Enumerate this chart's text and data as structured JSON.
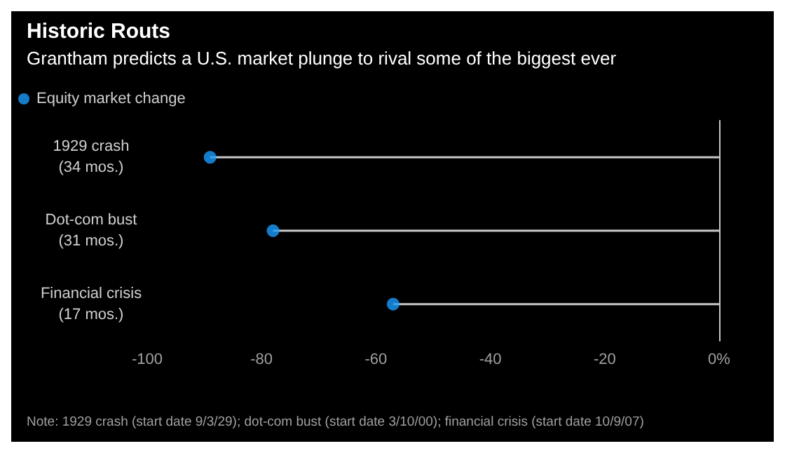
{
  "chart_data": {
    "type": "lollipop",
    "orientation": "horizontal",
    "title": "Historic Routs",
    "subtitle": "Grantham predicts a U.S. market plunge to rival some of the biggest ever",
    "categories": [
      "1929 crash\n(34 mos.)",
      "Dot-com bust\n(31 mos.)",
      "Financial crisis\n(17 mos.)"
    ],
    "series": [
      {
        "name": "Equity market change",
        "color": "#1a9bfc",
        "values": [
          -89,
          -78,
          -57
        ]
      }
    ],
    "xlim": [
      -100,
      0
    ],
    "xticks": [
      -100,
      -80,
      -60,
      -40,
      -20,
      {
        "value": 0,
        "label": "0%"
      }
    ],
    "grid": false,
    "legend": "top left",
    "marker": "circle",
    "annotations": [
      "Note: 1929 crash (start date 9/3/29); dot-com bust (start date 3/10/00); financial crisis (start date 10/9/07)"
    ]
  }
}
